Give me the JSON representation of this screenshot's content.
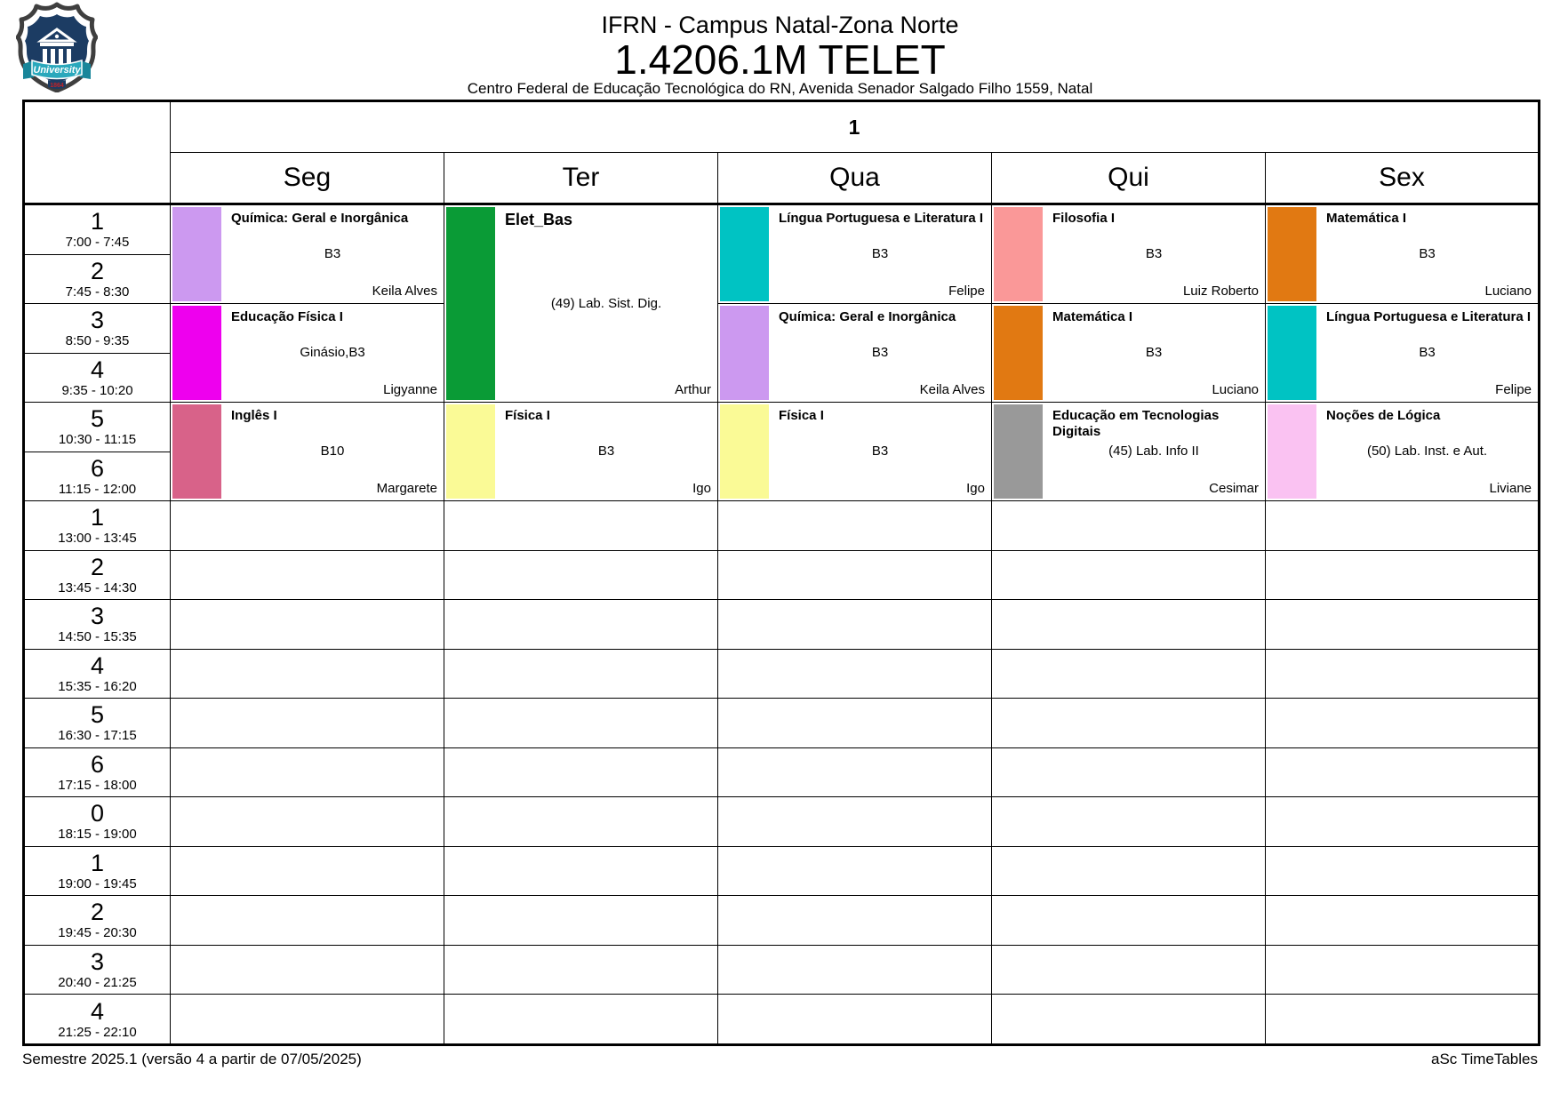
{
  "header": {
    "school": "IFRN - Campus Natal-Zona Norte",
    "class_name": "1.4206.1M TELET",
    "address": "Centro Federal de Educação Tecnológica do RN, Avenida Senador Salgado Filho 1559, Natal"
  },
  "logo": {
    "banner_text": "University",
    "year_text": "1864",
    "shield_color": "#1c3c63",
    "ribbon_color": "#2aa8bc",
    "year_color": "#c22326"
  },
  "timetable": {
    "group_label": "1",
    "day_headers": [
      "Seg",
      "Ter",
      "Qua",
      "Qui",
      "Sex"
    ],
    "periods": [
      {
        "num": "1",
        "time": "7:00 - 7:45"
      },
      {
        "num": "2",
        "time": "7:45 - 8:30"
      },
      {
        "num": "3",
        "time": "8:50 - 9:35"
      },
      {
        "num": "4",
        "time": "9:35 - 10:20"
      },
      {
        "num": "5",
        "time": "10:30 - 11:15"
      },
      {
        "num": "6",
        "time": "11:15 - 12:00"
      },
      {
        "num": "1",
        "time": "13:00 - 13:45"
      },
      {
        "num": "2",
        "time": "13:45 - 14:30"
      },
      {
        "num": "3",
        "time": "14:50 - 15:35"
      },
      {
        "num": "4",
        "time": "15:35 - 16:20"
      },
      {
        "num": "5",
        "time": "16:30 - 17:15"
      },
      {
        "num": "6",
        "time": "17:15 - 18:00"
      },
      {
        "num": "0",
        "time": "18:15 - 19:00"
      },
      {
        "num": "1",
        "time": "19:00 - 19:45"
      },
      {
        "num": "2",
        "time": "19:45 - 20:30"
      },
      {
        "num": "3",
        "time": "20:40 - 21:25"
      },
      {
        "num": "4",
        "time": "21:25 - 22:10"
      }
    ],
    "lessons": [
      {
        "day": 0,
        "row": 0,
        "span": 2,
        "subject": "Química: Geral e Inorgânica",
        "room": "B3",
        "teacher": "Keila Alves",
        "color": "#CC99F0",
        "large": false
      },
      {
        "day": 0,
        "row": 2,
        "span": 2,
        "subject": "Educação Física I",
        "room": "Ginásio,B3",
        "teacher": "Ligyanne",
        "color": "#EE00EE",
        "large": false
      },
      {
        "day": 0,
        "row": 4,
        "span": 2,
        "subject": "Inglês I",
        "room": "B10",
        "teacher": "Margarete",
        "color": "#D86289",
        "large": false
      },
      {
        "day": 1,
        "row": 0,
        "span": 4,
        "subject": "Elet_Bas",
        "room": "(49) Lab. Sist. Dig.",
        "teacher": "Arthur",
        "color": "#0A9B36",
        "large": true
      },
      {
        "day": 1,
        "row": 4,
        "span": 2,
        "subject": "Física I",
        "room": "B3",
        "teacher": "Igo",
        "color": "#FAFA96",
        "large": false
      },
      {
        "day": 2,
        "row": 0,
        "span": 2,
        "subject": "Língua Portuguesa e Literatura I",
        "room": "B3",
        "teacher": "Felipe",
        "color": "#00C3C3",
        "large": false
      },
      {
        "day": 2,
        "row": 2,
        "span": 2,
        "subject": "Química: Geral e Inorgânica",
        "room": "B3",
        "teacher": "Keila Alves",
        "color": "#CC99F0",
        "large": false
      },
      {
        "day": 2,
        "row": 4,
        "span": 2,
        "subject": "Física I",
        "room": "B3",
        "teacher": "Igo",
        "color": "#FAFA96",
        "large": false
      },
      {
        "day": 3,
        "row": 0,
        "span": 2,
        "subject": "Filosofia I",
        "room": "B3",
        "teacher": "Luiz Roberto",
        "color": "#FA9898",
        "large": false
      },
      {
        "day": 3,
        "row": 2,
        "span": 2,
        "subject": "Matemática I",
        "room": "B3",
        "teacher": "Luciano",
        "color": "#E17912",
        "large": false
      },
      {
        "day": 3,
        "row": 4,
        "span": 2,
        "subject": "Educação em Tecnologias Digitais",
        "room": "(45) Lab. Info II",
        "teacher": "Cesimar",
        "color": "#999999",
        "large": false
      },
      {
        "day": 4,
        "row": 0,
        "span": 2,
        "subject": "Matemática I",
        "room": "B3",
        "teacher": "Luciano",
        "color": "#E17912",
        "large": false
      },
      {
        "day": 4,
        "row": 2,
        "span": 2,
        "subject": "Língua Portuguesa e Literatura I",
        "room": "B3",
        "teacher": "Felipe",
        "color": "#00C3C3",
        "large": false
      },
      {
        "day": 4,
        "row": 4,
        "span": 2,
        "subject": "Noções de Lógica",
        "room": "(50) Lab. Inst. e Aut.",
        "teacher": "Liviane",
        "color": "#FAC2F2",
        "large": false
      }
    ]
  },
  "footer": {
    "left": "Semestre 2025.1 (versão 4 a partir de 07/05/2025)",
    "right": "aSc TimeTables"
  }
}
